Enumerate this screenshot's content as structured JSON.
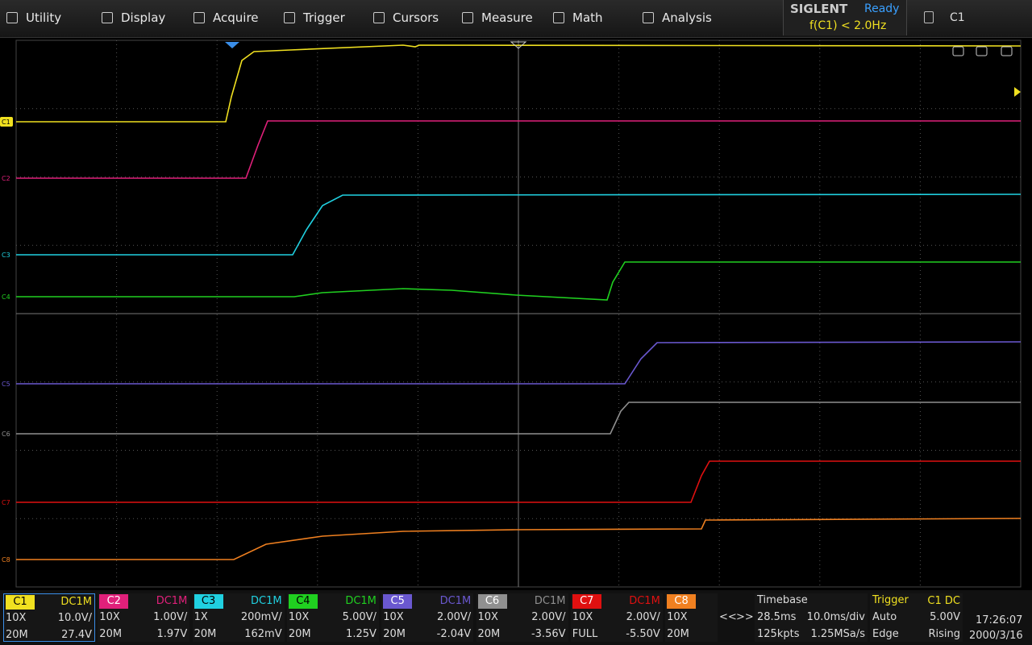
{
  "menu": [
    "Utility",
    "Display",
    "Acquire",
    "Trigger",
    "Cursors",
    "Measure",
    "Math",
    "Analysis"
  ],
  "status": {
    "brand": "SIGLENT",
    "state": "Ready",
    "trigger_info": "f(C1) < 2.0Hz",
    "active": "C1"
  },
  "channel_markers": [
    "C1",
    "C2",
    "C3",
    "C4",
    "C5",
    "C6",
    "C7",
    "C8"
  ],
  "channels": [
    {
      "name": "C1",
      "coupling": "DC1M",
      "probe": "10X",
      "scale": "10.0V/",
      "bw": "20M",
      "offset": "27.4V"
    },
    {
      "name": "C2",
      "coupling": "DC1M",
      "probe": "10X",
      "scale": "1.00V/",
      "bw": "20M",
      "offset": "1.97V"
    },
    {
      "name": "C3",
      "coupling": "DC1M",
      "probe": "1X",
      "scale": "200mV/",
      "bw": "20M",
      "offset": "162mV"
    },
    {
      "name": "C4",
      "coupling": "DC1M",
      "probe": "10X",
      "scale": "5.00V/",
      "bw": "20M",
      "offset": "1.25V"
    },
    {
      "name": "C5",
      "coupling": "DC1M",
      "probe": "10X",
      "scale": "2.00V/",
      "bw": "20M",
      "offset": "-2.04V"
    },
    {
      "name": "C6",
      "coupling": "DC1M",
      "probe": "10X",
      "scale": "2.00V/",
      "bw": "20M",
      "offset": "-3.56V"
    },
    {
      "name": "C7",
      "coupling": "DC1M",
      "probe": "10X",
      "scale": "2.00V/",
      "bw": "FULL",
      "offset": "-5.50V"
    },
    {
      "name": "C8",
      "probe": "10X",
      "bw": "20M"
    }
  ],
  "nav": [
    "<<",
    ">>"
  ],
  "timebase": {
    "title": "Timebase",
    "delay": "28.5ms",
    "scale": "10.0ms/div",
    "points": "125kpts",
    "rate": "1.25MSa/s"
  },
  "trigger": {
    "title": "Trigger",
    "source": "C1 DC",
    "mode": "Auto",
    "level": "5.00V",
    "type": "Edge",
    "slope": "Rising"
  },
  "clock": {
    "time": "17:26:07",
    "date": "2000/3/16"
  }
}
